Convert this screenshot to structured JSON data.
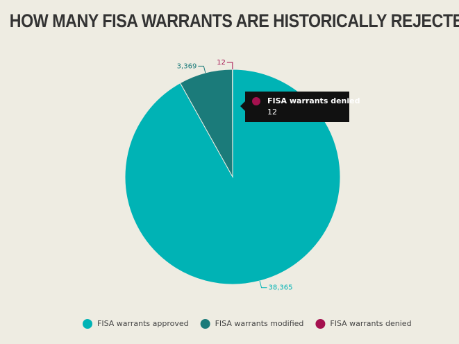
{
  "chart_data": {
    "type": "pie",
    "title": "HOW MANY FISA WARRANTS ARE HISTORICALLY REJECTED?",
    "categories": [
      "FISA warrants approved",
      "FISA warrants modified",
      "FISA warrants denied"
    ],
    "values": [
      38365,
      3369,
      12
    ],
    "value_labels": [
      "38,365",
      "3,369",
      "12"
    ],
    "colors": [
      "#00b3b5",
      "#1b7b7a",
      "#a5114f"
    ]
  }
}
